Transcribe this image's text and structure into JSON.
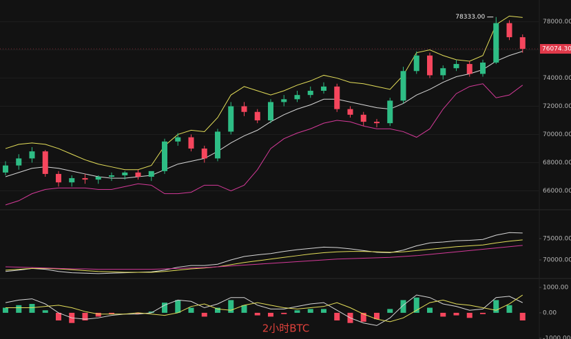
{
  "chart_data": [
    {
      "type": "candlestick",
      "title": "2小时BTC",
      "ylim": [
        64660,
        79540
      ],
      "yticks": [
        {
          "value": 66000,
          "label": "66000.00"
        },
        {
          "value": 68000,
          "label": "68000.00"
        },
        {
          "value": 70000,
          "label": "70000.00"
        },
        {
          "value": 72000,
          "label": "72000.00"
        },
        {
          "value": 74000,
          "label": "74000.00"
        },
        {
          "value": 76000,
          "label": "76000.00"
        },
        {
          "value": 78000,
          "label": "78000.00"
        }
      ],
      "grid": true,
      "up_color": "#2ebd85",
      "down_color": "#f6465d",
      "open": [
        67300,
        67800,
        68300,
        68800,
        67200,
        66600,
        66900,
        66800,
        67000,
        67100,
        67300,
        67000,
        67400,
        69500,
        69800,
        69000,
        68300,
        70200,
        72000,
        71600,
        71000,
        72300,
        72500,
        72800,
        73100,
        73400,
        71800,
        71400,
        70900,
        70800,
        72400,
        74500,
        75600,
        74200,
        74700,
        75000,
        74300,
        75100,
        77900,
        76900
      ],
      "high": [
        68100,
        68600,
        69100,
        68900,
        67400,
        67100,
        67200,
        67100,
        67300,
        67400,
        67500,
        67300,
        69700,
        70100,
        70000,
        69200,
        70400,
        72300,
        72300,
        71800,
        72500,
        72800,
        73100,
        73400,
        73700,
        73600,
        72000,
        71600,
        71100,
        72600,
        74800,
        75900,
        75800,
        74900,
        75300,
        75200,
        75300,
        78333,
        78100,
        77100
      ],
      "low": [
        67100,
        67500,
        68000,
        67000,
        66300,
        66300,
        66500,
        66500,
        66700,
        66800,
        66800,
        66700,
        67200,
        69200,
        68800,
        68000,
        68100,
        70000,
        71300,
        70800,
        70800,
        72000,
        72300,
        72600,
        72900,
        71600,
        71200,
        70600,
        70500,
        70600,
        72200,
        74300,
        74000,
        73900,
        74500,
        74100,
        74100,
        75000,
        76700,
        75800
      ],
      "close": [
        67800,
        68300,
        68800,
        67200,
        66600,
        66900,
        66800,
        67000,
        67100,
        67300,
        67000,
        67400,
        69500,
        69800,
        69000,
        68300,
        70200,
        72000,
        71600,
        71000,
        72300,
        72500,
        72800,
        73100,
        73400,
        71800,
        71400,
        70900,
        70800,
        72400,
        74500,
        75600,
        74200,
        74700,
        75000,
        74300,
        75100,
        77900,
        76900,
        76074.3
      ],
      "series": [
        {
          "color": "#e6e05a",
          "values": [
            69000,
            69300,
            69400,
            69300,
            69000,
            68600,
            68200,
            67900,
            67700,
            67500,
            67500,
            67800,
            69200,
            70000,
            70300,
            70200,
            71200,
            72800,
            73400,
            73100,
            72800,
            73100,
            73500,
            73800,
            74200,
            74000,
            73700,
            73600,
            73400,
            73200,
            74200,
            75800,
            76000,
            75600,
            75300,
            75200,
            75600,
            77800,
            78400,
            78300
          ]
        },
        {
          "color": "#d8d8d8",
          "values": [
            67000,
            67300,
            67600,
            67700,
            67600,
            67400,
            67200,
            67000,
            66900,
            66900,
            67000,
            67100,
            67500,
            67900,
            68100,
            68300,
            68800,
            69400,
            69900,
            70300,
            70900,
            71400,
            71800,
            72100,
            72500,
            72500,
            72300,
            72100,
            71900,
            71800,
            72200,
            72800,
            73200,
            73700,
            74100,
            74300,
            74600,
            75200,
            75600,
            75900
          ]
        },
        {
          "color": "#d63a9a",
          "values": [
            65000,
            65300,
            65800,
            66100,
            66200,
            66200,
            66200,
            66100,
            66100,
            66300,
            66500,
            66400,
            65800,
            65800,
            65900,
            66400,
            66400,
            66000,
            66400,
            67500,
            69000,
            69700,
            70100,
            70400,
            70800,
            71000,
            70900,
            70600,
            70400,
            70400,
            70200,
            69800,
            70400,
            71800,
            72900,
            73400,
            73600,
            72600,
            72800,
            73500
          ]
        }
      ],
      "high_marker": {
        "value": 78333,
        "label": "78333.00"
      },
      "last_price": {
        "value": 76074.3,
        "label": "76074.30"
      }
    },
    {
      "type": "line",
      "ylim": [
        65650,
        81770
      ],
      "yticks": [
        {
          "value": 70000,
          "label": "70000.00"
        },
        {
          "value": 75000,
          "label": "75000.00"
        }
      ],
      "series": [
        {
          "color": "#d8d8d8",
          "values": [
            67300,
            67600,
            68000,
            67800,
            67300,
            67000,
            66900,
            66800,
            66900,
            67000,
            67100,
            67200,
            67600,
            68300,
            68700,
            68700,
            69000,
            70000,
            70800,
            71200,
            71500,
            72000,
            72400,
            72700,
            73000,
            72900,
            72600,
            72200,
            71800,
            71700,
            72300,
            73300,
            74000,
            74200,
            74500,
            74600,
            74800,
            75800,
            76400,
            76300
          ]
        },
        {
          "color": "#e6e05a",
          "values": [
            67600,
            67800,
            68000,
            68000,
            67900,
            67700,
            67500,
            67300,
            67200,
            67100,
            67100,
            67100,
            67300,
            67600,
            67900,
            68100,
            68400,
            68900,
            69400,
            69800,
            70200,
            70600,
            71000,
            71400,
            71700,
            71900,
            72000,
            72000,
            71900,
            71800,
            71900,
            72200,
            72500,
            72800,
            73100,
            73300,
            73500,
            74000,
            74400,
            74700
          ]
        },
        {
          "color": "#d63a9a",
          "values": [
            68400,
            68300,
            68200,
            68100,
            68000,
            67900,
            67900,
            67800,
            67800,
            67800,
            67800,
            67800,
            67900,
            68000,
            68100,
            68200,
            68400,
            68600,
            68800,
            69000,
            69200,
            69400,
            69600,
            69800,
            70000,
            70200,
            70300,
            70400,
            70500,
            70600,
            70800,
            71000,
            71300,
            71600,
            71900,
            72200,
            72500,
            72800,
            73100,
            73400
          ]
        }
      ]
    },
    {
      "type": "bar",
      "ylim": [
        -1030,
        1350
      ],
      "yticks": [
        {
          "value": -1000,
          "label": "-1000.00"
        },
        {
          "value": 0,
          "label": "0.00"
        },
        {
          "value": 1000,
          "label": "1000.00"
        }
      ],
      "up_color": "#2ebd85",
      "down_color": "#f6465d",
      "values": [
        200,
        300,
        350,
        100,
        -300,
        -400,
        -300,
        -150,
        -50,
        0,
        -50,
        50,
        400,
        500,
        200,
        -150,
        200,
        500,
        300,
        -100,
        -150,
        -50,
        100,
        150,
        150,
        -300,
        -400,
        -350,
        -250,
        150,
        500,
        600,
        200,
        -150,
        -100,
        -200,
        -50,
        500,
        300,
        -300
      ],
      "series": [
        {
          "color": "#d8d8d8",
          "values": [
            400,
            500,
            550,
            350,
            0,
            -200,
            -250,
            -200,
            -100,
            -50,
            -50,
            0,
            300,
            500,
            450,
            200,
            350,
            600,
            600,
            300,
            150,
            150,
            250,
            350,
            400,
            100,
            -200,
            -400,
            -500,
            -200,
            300,
            700,
            600,
            350,
            250,
            100,
            150,
            600,
            650,
            400
          ]
        },
        {
          "color": "#e6e05a",
          "values": [
            200,
            200,
            200,
            250,
            300,
            200,
            50,
            -50,
            -50,
            -50,
            0,
            -50,
            -100,
            0,
            250,
            350,
            150,
            100,
            300,
            400,
            300,
            200,
            150,
            200,
            250,
            400,
            200,
            -50,
            -250,
            -350,
            -200,
            100,
            400,
            500,
            350,
            300,
            200,
            100,
            350,
            700
          ]
        }
      ]
    }
  ]
}
